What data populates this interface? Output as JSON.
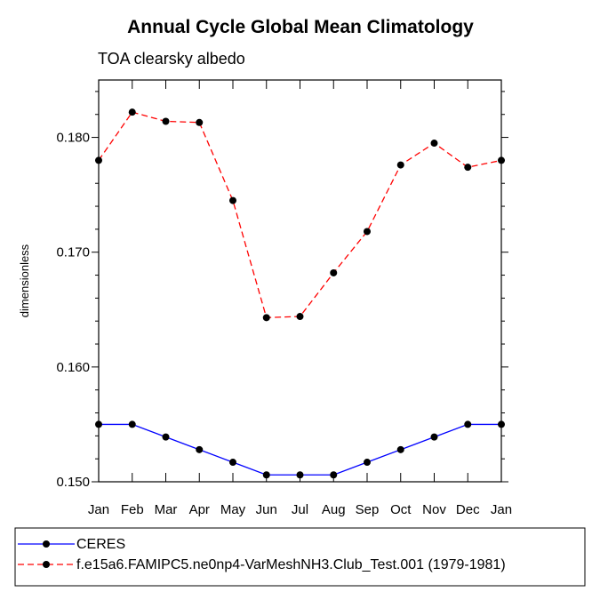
{
  "chart_data": {
    "type": "line",
    "title": "Annual Cycle Global Mean Climatology",
    "subtitle": "TOA clearsky albedo",
    "xlabel": "",
    "ylabel": "dimensionless",
    "categories": [
      "Jan",
      "Feb",
      "Mar",
      "Apr",
      "May",
      "Jun",
      "Jul",
      "Aug",
      "Sep",
      "Oct",
      "Nov",
      "Dec",
      "Jan"
    ],
    "ylim": [
      0.15,
      0.185
    ],
    "yticks": [
      0.15,
      0.16,
      0.17,
      0.18
    ],
    "ytick_labels": [
      "0.150",
      "0.160",
      "0.170",
      "0.180"
    ],
    "grid": false,
    "legend_position": "bottom",
    "series": [
      {
        "name": "CERES",
        "color": "#0000ff",
        "line_style": "solid",
        "marker": "filled-circle",
        "values": [
          0.155,
          0.155,
          0.1539,
          0.1528,
          0.1517,
          0.1506,
          0.1506,
          0.1506,
          0.1517,
          0.1528,
          0.1539,
          0.155,
          0.155
        ]
      },
      {
        "name": "f.e15a6.FAMIPC5.ne0np4-VarMeshNH3.Club_Test.001 (1979-1981)",
        "color": "#ff0000",
        "line_style": "dashed",
        "marker": "filled-circle",
        "values": [
          0.178,
          0.1822,
          0.1814,
          0.1813,
          0.1745,
          0.1643,
          0.1644,
          0.1682,
          0.1718,
          0.1776,
          0.1795,
          0.1774,
          0.178
        ]
      }
    ]
  }
}
